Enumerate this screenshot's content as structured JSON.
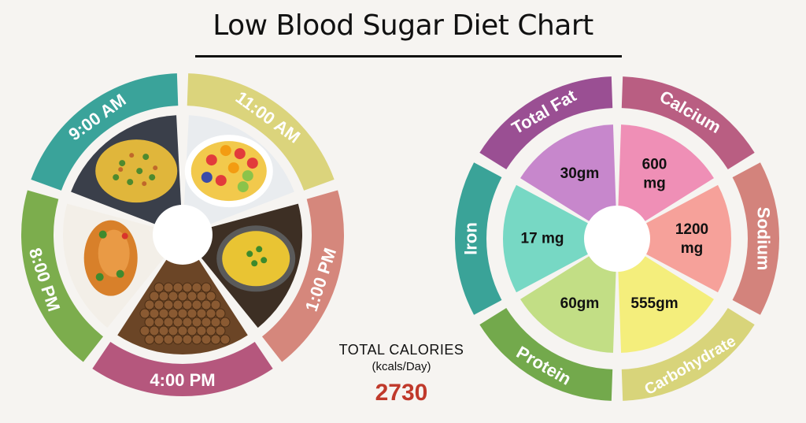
{
  "title": "Low Blood Sugar Diet Chart",
  "meal_schedule": {
    "times": [
      {
        "label": "9:00 AM",
        "color": "#3aa39a"
      },
      {
        "label": "11:00 AM",
        "color": "#dbd47c"
      },
      {
        "label": "1:00 PM",
        "color": "#d5877c"
      },
      {
        "label": "4:00 PM",
        "color": "#b5577d"
      },
      {
        "label": "8:00 PM",
        "color": "#7cad4d"
      }
    ],
    "foods": [
      {
        "name": "poha-rice-dish",
        "icon": "rice-bowl-icon"
      },
      {
        "name": "fruit-salad",
        "icon": "fruit-bowl-icon"
      },
      {
        "name": "lentil-dal",
        "icon": "dal-bowl-icon"
      },
      {
        "name": "roasted-chickpeas",
        "icon": "chickpeas-icon"
      },
      {
        "name": "fish-curry",
        "icon": "fish-icon"
      }
    ]
  },
  "totals": {
    "label": "TOTAL CALORIES",
    "unit": "(kcals/Day)",
    "value": "2730"
  },
  "chart_data": {
    "type": "pie",
    "categories": [
      "Total Fat",
      "Calcium",
      "Sodium",
      "Carbohydrate",
      "Protein",
      "Iron"
    ],
    "values": [
      "30gm",
      "600 mg",
      "1200 mg",
      "555gm",
      "60gm",
      "17 mg"
    ],
    "outer_colors": [
      "#9a4f93",
      "#b95e82",
      "#d3837c",
      "#d8d47a",
      "#73a94c",
      "#3aa398"
    ],
    "inner_colors": [
      "#c787cc",
      "#ef8fb6",
      "#f6a19a",
      "#f4ee7c",
      "#c2de85",
      "#77d8c4"
    ]
  }
}
